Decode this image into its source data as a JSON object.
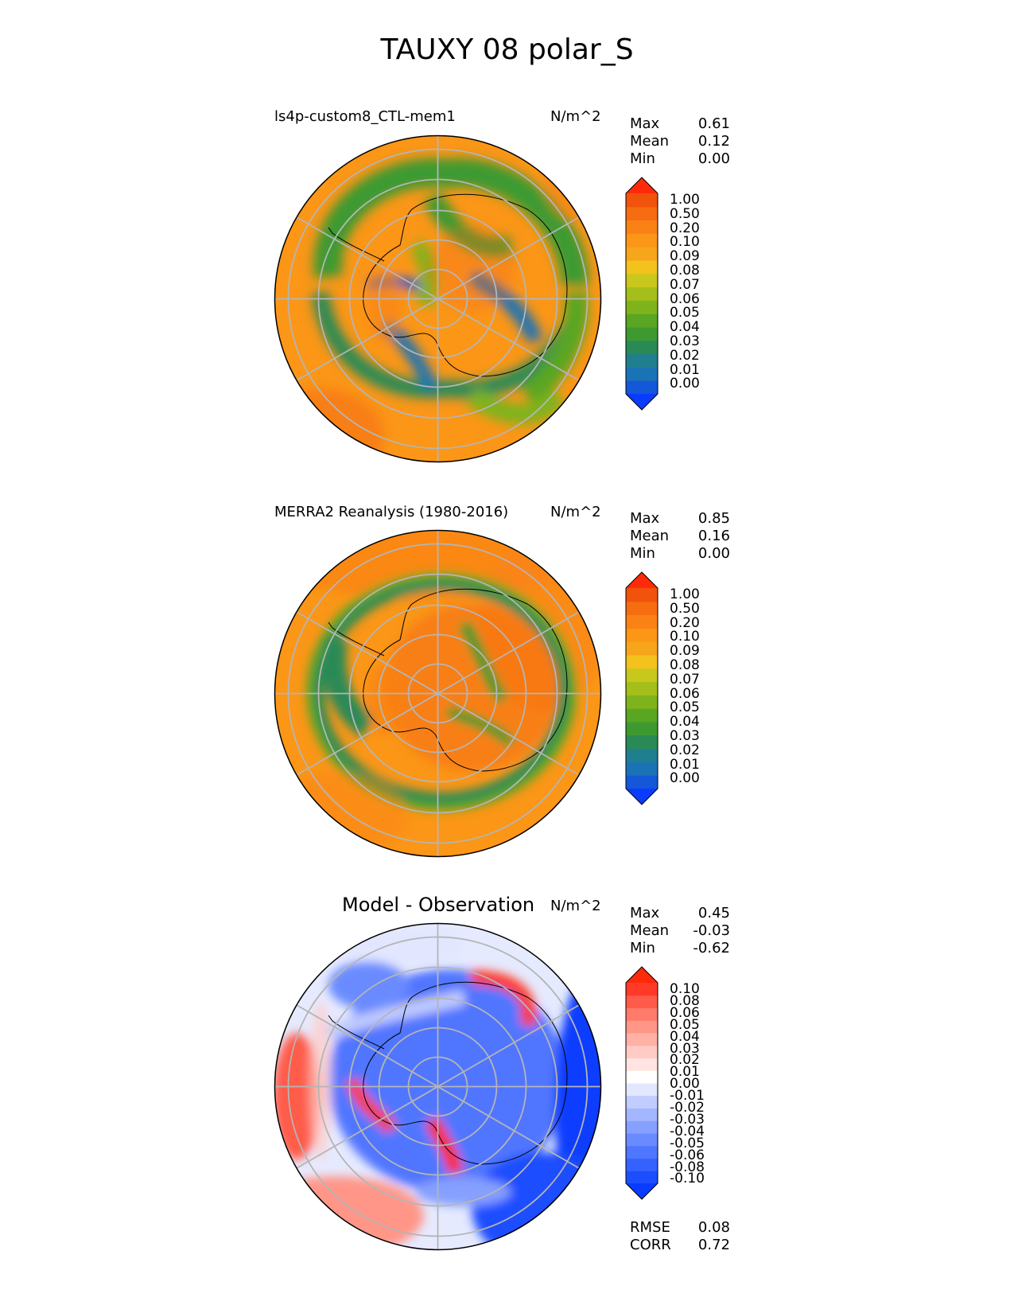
{
  "figure": {
    "title": "TAUXY 08 polar_S",
    "units": "N/m^2"
  },
  "panels": [
    {
      "id": "model",
      "title": "ls4p-custom8_CTL-mem1",
      "units": "N/m^2",
      "stats": [
        {
          "label": "Max",
          "value": "0.61"
        },
        {
          "label": "Mean",
          "value": "0.12"
        },
        {
          "label": "Min",
          "value": "0.00"
        }
      ],
      "colorbar": {
        "ticks": [
          "1.00",
          "0.50",
          "0.20",
          "0.10",
          "0.09",
          "0.08",
          "0.07",
          "0.06",
          "0.05",
          "0.04",
          "0.03",
          "0.02",
          "0.01",
          "0.00"
        ],
        "colors": [
          "#0a3cff",
          "#1457d9",
          "#1a73b5",
          "#1f7f8f",
          "#2a8a56",
          "#3e9a30",
          "#5aa623",
          "#7fb31c",
          "#a4bf1a",
          "#c8c71c",
          "#f3c21c",
          "#f7a51a",
          "#fb9617",
          "#fa8214",
          "#f66c10",
          "#f1520c",
          "#ff2a0a"
        ]
      }
    },
    {
      "id": "obs",
      "title": "MERRA2 Reanalysis (1980-2016)",
      "units": "N/m^2",
      "stats": [
        {
          "label": "Max",
          "value": "0.85"
        },
        {
          "label": "Mean",
          "value": "0.16"
        },
        {
          "label": "Min",
          "value": "0.00"
        }
      ],
      "colorbar": {
        "ticks": [
          "1.00",
          "0.50",
          "0.20",
          "0.10",
          "0.09",
          "0.08",
          "0.07",
          "0.06",
          "0.05",
          "0.04",
          "0.03",
          "0.02",
          "0.01",
          "0.00"
        ],
        "colors": [
          "#0a3cff",
          "#1457d9",
          "#1a73b5",
          "#1f7f8f",
          "#2a8a56",
          "#3e9a30",
          "#5aa623",
          "#7fb31c",
          "#a4bf1a",
          "#c8c71c",
          "#f3c21c",
          "#f7a51a",
          "#fb9617",
          "#fa8214",
          "#f66c10",
          "#f1520c",
          "#ff2a0a"
        ]
      }
    },
    {
      "id": "diff",
      "title": "Model - Observation",
      "units": "N/m^2",
      "stats": [
        {
          "label": "Max",
          "value": "0.45"
        },
        {
          "label": "Mean",
          "value": "-0.03"
        },
        {
          "label": "Min",
          "value": "-0.62"
        }
      ],
      "extra_stats": [
        {
          "label": "RMSE",
          "value": "0.08"
        },
        {
          "label": "CORR",
          "value": "0.72"
        }
      ],
      "colorbar": {
        "ticks": [
          "0.10",
          "0.08",
          "0.06",
          "0.05",
          "0.04",
          "0.03",
          "0.02",
          "0.01",
          "0.00",
          "-0.01",
          "-0.02",
          "-0.03",
          "-0.04",
          "-0.05",
          "-0.06",
          "-0.08",
          "-0.10"
        ],
        "colors": [
          "#0a3cff",
          "#1c4eff",
          "#3562ff",
          "#4f76ff",
          "#6a8bff",
          "#86a0ff",
          "#a3b6ff",
          "#c1ccff",
          "#e2e7ff",
          "#ffffff",
          "#ffe4e1",
          "#ffcbc4",
          "#ffb1a6",
          "#ff9688",
          "#ff7a6a",
          "#ff5b4a",
          "#ff3a28",
          "#ff2a0a"
        ]
      }
    }
  ]
}
